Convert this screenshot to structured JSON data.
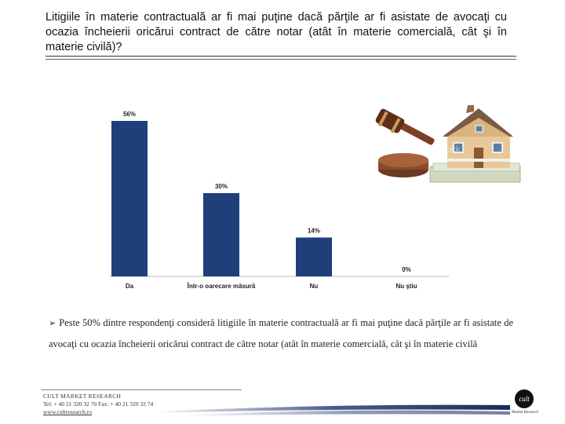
{
  "title": "Litigiile în materie contractuală ar fi mai puţine dacă părţile ar fi asistate de avocaţi cu ocazia încheierii oricărui contract de către notar (atât în materie comercială, cât şi în materie civilă)?",
  "chart_data": {
    "type": "bar",
    "categories": [
      "Da",
      "Într-o oarecare măsură",
      "Nu",
      "Nu ştiu"
    ],
    "values": [
      56,
      30,
      14,
      0
    ],
    "value_labels": [
      "56%",
      "30%",
      "14%",
      "0%"
    ],
    "ylim": [
      0,
      56
    ],
    "bar_color": "#1f3f7a",
    "grid": false,
    "title": "",
    "xlabel": "",
    "ylabel": ""
  },
  "illustration": {
    "icon": "gavel-and-house-icon",
    "watermark": "iStock"
  },
  "bullet": {
    "arrow": "➢",
    "text": "Peste 50% dintre respondenţi consideră litigiile în materie contractuală ar fi mai puţine dacă părţile ar fi asistate de avocaţi cu ocazia încheierii oricărui contract de către notar (atât în materie comercială, cât şi în materie civilă"
  },
  "footer": {
    "company": "CULT MARKET RESEARCH",
    "contact": "Tel: + 40 21 320 32 70 Fax: + 40 21 320 32 74",
    "web": "www.cultresearch.ro"
  },
  "logo": {
    "mark": "cult",
    "caption": "Market Research"
  }
}
